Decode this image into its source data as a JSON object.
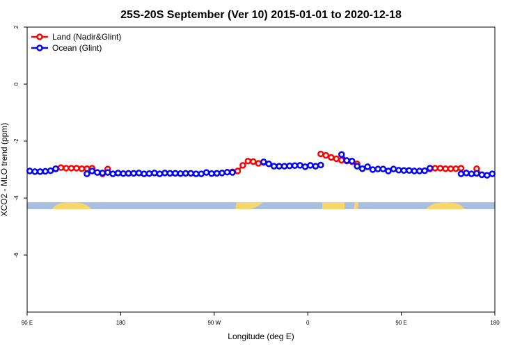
{
  "chart_data": {
    "type": "line",
    "title": "25S-20S September (Ver 10)   2015-01-01 to 2020-12-18",
    "x_label": "Longitude (deg E)",
    "y_label": "XCO2 - MLO trend (ppm)",
    "xlim": [
      90,
      540
    ],
    "xticks": [
      {
        "value": 90,
        "label": "90 E"
      },
      180,
      {
        "value": 270,
        "label": "90 W"
      },
      {
        "value": 360,
        "label": "0"
      },
      {
        "value": 450,
        "label": "90 E"
      },
      {
        "value": 540,
        "label": "180"
      }
    ],
    "ylim": [
      -8,
      2
    ],
    "yticks": [
      -6,
      -4,
      -2,
      0,
      2
    ],
    "legend": "top-left",
    "x": [
      92.5,
      97.5,
      102.5,
      107.5,
      112.5,
      117.5,
      122.5,
      127.5,
      132.5,
      137.5,
      142.5,
      147.5,
      152.5,
      157.5,
      162.5,
      167.5,
      172.5,
      177.5,
      182.5,
      187.5,
      192.5,
      197.5,
      202.5,
      207.5,
      212.5,
      217.5,
      222.5,
      227.5,
      232.5,
      237.5,
      242.5,
      247.5,
      252.5,
      257.5,
      262.5,
      267.5,
      272.5,
      277.5,
      282.5,
      287.5,
      292.5,
      297.5,
      302.5,
      307.5,
      312.5,
      317.5,
      322.5,
      327.5,
      332.5,
      337.5,
      342.5,
      347.5,
      352.5,
      357.5,
      362.5,
      367.5,
      372.5,
      377.5,
      382.5,
      387.5,
      392.5,
      397.5,
      402.5,
      407.5,
      412.5,
      417.5,
      422.5,
      427.5,
      432.5,
      437.5,
      442.5,
      447.5,
      452.5,
      457.5,
      462.5,
      467.5,
      472.5,
      477.5,
      482.5,
      487.5,
      492.5,
      497.5,
      502.5,
      507.5,
      512.5,
      517.5,
      522.5,
      527.5,
      532.5,
      537.5
    ],
    "series": [
      {
        "name": "Land (Nadir&Glint)",
        "color": "#ff0000",
        "values": [
          null,
          null,
          null,
          null,
          null,
          -2.98,
          -2.93,
          -2.95,
          -2.95,
          -2.95,
          -2.97,
          -2.97,
          -2.95,
          null,
          -3.15,
          -2.98,
          null,
          null,
          null,
          null,
          null,
          null,
          null,
          null,
          null,
          null,
          null,
          null,
          null,
          null,
          null,
          null,
          null,
          null,
          null,
          null,
          null,
          null,
          null,
          -3.08,
          -3.05,
          -2.85,
          -2.7,
          -2.72,
          -2.78,
          -2.75,
          null,
          null,
          null,
          null,
          null,
          null,
          null,
          null,
          null,
          null,
          -2.45,
          -2.5,
          -2.57,
          -2.62,
          -2.67,
          -2.7,
          -2.72,
          -2.8,
          null,
          null,
          null,
          null,
          null,
          null,
          null,
          null,
          null,
          null,
          null,
          null,
          null,
          -2.98,
          -2.95,
          -2.95,
          -2.97,
          -2.97,
          -2.97,
          -2.95,
          null,
          null,
          -2.97,
          -3.18,
          null,
          null
        ]
      },
      {
        "name": "Ocean (Glint)",
        "color": "#0000ff",
        "values": [
          -3.05,
          -3.07,
          -3.07,
          -3.06,
          -3.04,
          -2.97,
          null,
          null,
          null,
          null,
          null,
          -3.15,
          -3.05,
          -3.1,
          -3.12,
          -3.1,
          -3.15,
          -3.12,
          -3.14,
          -3.13,
          -3.13,
          -3.12,
          -3.15,
          -3.14,
          -3.12,
          -3.15,
          -3.12,
          -3.13,
          -3.13,
          -3.14,
          -3.13,
          -3.13,
          -3.15,
          -3.15,
          -3.1,
          -3.14,
          -3.13,
          -3.12,
          -3.09,
          -3.1,
          null,
          null,
          null,
          null,
          null,
          -2.73,
          -2.8,
          -2.88,
          -2.88,
          -2.88,
          -2.87,
          -2.86,
          -2.85,
          -2.9,
          -2.85,
          -2.88,
          -2.84,
          null,
          null,
          null,
          -2.47,
          -2.68,
          -2.7,
          -2.88,
          -2.97,
          -2.9,
          -3.0,
          -2.98,
          -2.98,
          -3.05,
          -2.98,
          -3.02,
          -3.03,
          -3.03,
          -3.05,
          -3.05,
          -3.04,
          -2.95,
          null,
          null,
          null,
          null,
          null,
          -3.15,
          -3.12,
          -3.15,
          -3.13,
          -3.18,
          -3.2,
          -3.15
        ]
      }
    ]
  }
}
